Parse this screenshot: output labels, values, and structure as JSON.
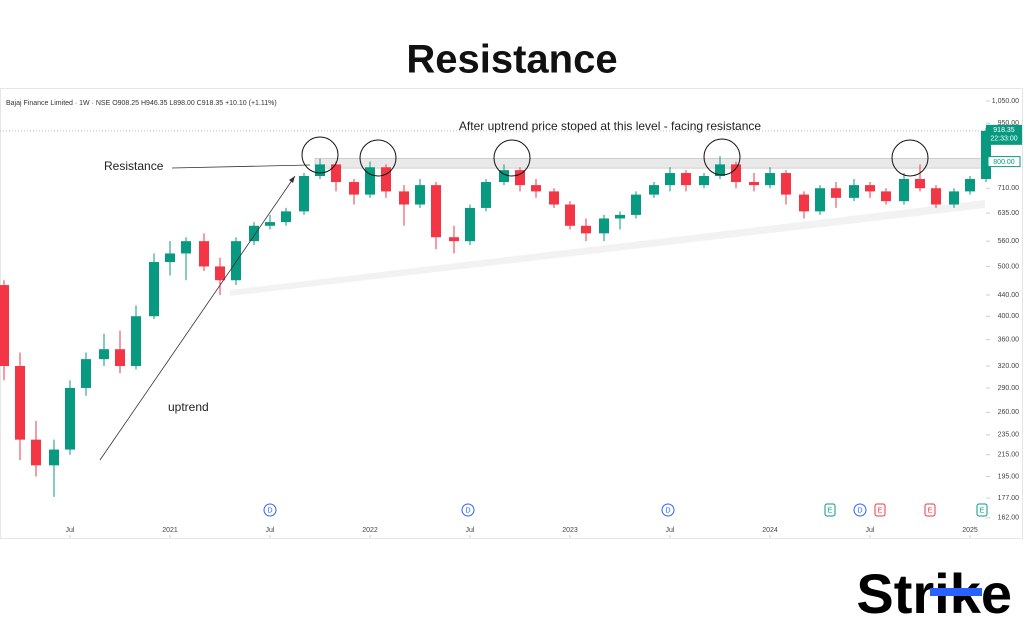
{
  "chart_data": {
    "type": "candlestick",
    "title": "Resistance",
    "header": "Bajaj Finance Limited · 1W · NSE  O908.25 H946.35 L898.00 C918.35 +10.10 (+1.11%)",
    "annotations": {
      "top": "After uptrend price stoped at this level - facing resistance",
      "resistance": "Resistance",
      "uptrend": "uptrend"
    },
    "logo": "Strike",
    "log_scale": true,
    "up_color": "#089981",
    "down_color": "#f23645",
    "resistance_zone": [
      777,
      812
    ],
    "price_tag": {
      "value": 918.35,
      "label": "918.35",
      "time": "22:33:00"
    },
    "level_tag": {
      "value": 800,
      "label": "800.00"
    },
    "xlim": [
      2020.15,
      2025.1
    ],
    "xticks": [
      {
        "value": 2020.5,
        "label": "Jul"
      },
      {
        "value": 2021,
        "label": "2021"
      },
      {
        "value": 2021.5,
        "label": "Jul"
      },
      {
        "value": 2022,
        "label": "2022"
      },
      {
        "value": 2022.5,
        "label": "Jul"
      },
      {
        "value": 2023,
        "label": "2023"
      },
      {
        "value": 2023.5,
        "label": "Jul"
      },
      {
        "value": 2024,
        "label": "2024"
      },
      {
        "value": 2024.5,
        "label": "Jul"
      },
      {
        "value": 2025,
        "label": "2025"
      }
    ],
    "ylim": [
      150,
      1093
    ],
    "yticks": [
      {
        "value": 162,
        "label": "162.00"
      },
      {
        "value": 177,
        "label": "177.00"
      },
      {
        "value": 195,
        "label": "195.00"
      },
      {
        "value": 215,
        "label": "215.00"
      },
      {
        "value": 235,
        "label": "235.00"
      },
      {
        "value": 260,
        "label": "260.00"
      },
      {
        "value": 290,
        "label": "290.00"
      },
      {
        "value": 320,
        "label": "320.00"
      },
      {
        "value": 360,
        "label": "360.00"
      },
      {
        "value": 400,
        "label": "400.00"
      },
      {
        "value": 440,
        "label": "440.00"
      },
      {
        "value": 500,
        "label": "500.00"
      },
      {
        "value": 560,
        "label": "560.00"
      },
      {
        "value": 635,
        "label": "635.00"
      },
      {
        "value": 710,
        "label": "710.00"
      },
      {
        "value": 950,
        "label": "950.00"
      },
      {
        "value": 1050,
        "label": "1,050.00"
      }
    ],
    "events": [
      {
        "x": 2021.5,
        "label": "D",
        "color": "#2962ff"
      },
      {
        "x": 2022.49,
        "label": "D",
        "color": "#2962ff"
      },
      {
        "x": 2023.49,
        "label": "D",
        "color": "#2962ff"
      },
      {
        "x": 2024.3,
        "label": "E",
        "color": "#089981"
      },
      {
        "x": 2024.45,
        "label": "D",
        "color": "#2962ff"
      },
      {
        "x": 2024.55,
        "label": "E",
        "color": "#f23645"
      },
      {
        "x": 2024.8,
        "label": "E",
        "color": "#f23645"
      },
      {
        "x": 2025.06,
        "label": "E",
        "color": "#089981"
      }
    ],
    "candles": [
      {
        "x": 2020.17,
        "open": 460,
        "high": 470,
        "low": 300,
        "close": 320
      },
      {
        "x": 2020.25,
        "open": 320,
        "high": 340,
        "low": 210,
        "close": 230
      },
      {
        "x": 2020.33,
        "open": 230,
        "high": 250,
        "low": 195,
        "close": 205
      },
      {
        "x": 2020.42,
        "open": 205,
        "high": 230,
        "low": 178,
        "close": 220
      },
      {
        "x": 2020.5,
        "open": 220,
        "high": 300,
        "low": 215,
        "close": 290
      },
      {
        "x": 2020.58,
        "open": 290,
        "high": 340,
        "low": 280,
        "close": 330
      },
      {
        "x": 2020.67,
        "open": 330,
        "high": 370,
        "low": 320,
        "close": 345
      },
      {
        "x": 2020.75,
        "open": 345,
        "high": 375,
        "low": 310,
        "close": 320
      },
      {
        "x": 2020.83,
        "open": 320,
        "high": 420,
        "low": 315,
        "close": 400
      },
      {
        "x": 2020.92,
        "open": 400,
        "high": 530,
        "low": 395,
        "close": 510
      },
      {
        "x": 2021,
        "open": 510,
        "high": 560,
        "low": 480,
        "close": 530
      },
      {
        "x": 2021.08,
        "open": 530,
        "high": 570,
        "low": 470,
        "close": 560
      },
      {
        "x": 2021.17,
        "open": 560,
        "high": 580,
        "low": 490,
        "close": 500
      },
      {
        "x": 2021.25,
        "open": 500,
        "high": 520,
        "low": 440,
        "close": 470
      },
      {
        "x": 2021.33,
        "open": 470,
        "high": 570,
        "low": 460,
        "close": 560
      },
      {
        "x": 2021.42,
        "open": 560,
        "high": 610,
        "low": 550,
        "close": 600
      },
      {
        "x": 2021.5,
        "open": 600,
        "high": 630,
        "low": 590,
        "close": 610
      },
      {
        "x": 2021.58,
        "open": 610,
        "high": 650,
        "low": 600,
        "close": 640
      },
      {
        "x": 2021.67,
        "open": 640,
        "high": 760,
        "low": 630,
        "close": 750
      },
      {
        "x": 2021.75,
        "open": 750,
        "high": 810,
        "low": 740,
        "close": 790
      },
      {
        "x": 2021.83,
        "open": 790,
        "high": 800,
        "low": 700,
        "close": 730
      },
      {
        "x": 2021.92,
        "open": 730,
        "high": 740,
        "low": 660,
        "close": 690
      },
      {
        "x": 2022,
        "open": 690,
        "high": 800,
        "low": 680,
        "close": 780
      },
      {
        "x": 2022.08,
        "open": 780,
        "high": 790,
        "low": 680,
        "close": 700
      },
      {
        "x": 2022.17,
        "open": 700,
        "high": 720,
        "low": 600,
        "close": 660
      },
      {
        "x": 2022.25,
        "open": 660,
        "high": 740,
        "low": 650,
        "close": 720
      },
      {
        "x": 2022.33,
        "open": 720,
        "high": 730,
        "low": 540,
        "close": 570
      },
      {
        "x": 2022.42,
        "open": 570,
        "high": 600,
        "low": 530,
        "close": 560
      },
      {
        "x": 2022.5,
        "open": 560,
        "high": 660,
        "low": 550,
        "close": 650
      },
      {
        "x": 2022.58,
        "open": 650,
        "high": 740,
        "low": 640,
        "close": 730
      },
      {
        "x": 2022.67,
        "open": 730,
        "high": 790,
        "low": 720,
        "close": 770
      },
      {
        "x": 2022.75,
        "open": 770,
        "high": 780,
        "low": 700,
        "close": 720
      },
      {
        "x": 2022.83,
        "open": 720,
        "high": 740,
        "low": 680,
        "close": 700
      },
      {
        "x": 2022.92,
        "open": 700,
        "high": 710,
        "low": 650,
        "close": 660
      },
      {
        "x": 2023,
        "open": 660,
        "high": 670,
        "low": 590,
        "close": 600
      },
      {
        "x": 2023.08,
        "open": 600,
        "high": 620,
        "low": 560,
        "close": 580
      },
      {
        "x": 2023.17,
        "open": 580,
        "high": 630,
        "low": 560,
        "close": 620
      },
      {
        "x": 2023.25,
        "open": 620,
        "high": 640,
        "low": 590,
        "close": 630
      },
      {
        "x": 2023.33,
        "open": 630,
        "high": 700,
        "low": 620,
        "close": 690
      },
      {
        "x": 2023.42,
        "open": 690,
        "high": 730,
        "low": 680,
        "close": 720
      },
      {
        "x": 2023.5,
        "open": 720,
        "high": 780,
        "low": 700,
        "close": 760
      },
      {
        "x": 2023.58,
        "open": 760,
        "high": 770,
        "low": 700,
        "close": 720
      },
      {
        "x": 2023.67,
        "open": 720,
        "high": 760,
        "low": 710,
        "close": 750
      },
      {
        "x": 2023.75,
        "open": 750,
        "high": 820,
        "low": 740,
        "close": 790
      },
      {
        "x": 2023.83,
        "open": 790,
        "high": 800,
        "low": 710,
        "close": 730
      },
      {
        "x": 2023.92,
        "open": 730,
        "high": 760,
        "low": 700,
        "close": 720
      },
      {
        "x": 2024,
        "open": 720,
        "high": 780,
        "low": 710,
        "close": 760
      },
      {
        "x": 2024.08,
        "open": 760,
        "high": 770,
        "low": 660,
        "close": 690
      },
      {
        "x": 2024.17,
        "open": 690,
        "high": 700,
        "low": 620,
        "close": 640
      },
      {
        "x": 2024.25,
        "open": 640,
        "high": 720,
        "low": 630,
        "close": 710
      },
      {
        "x": 2024.33,
        "open": 710,
        "high": 730,
        "low": 650,
        "close": 680
      },
      {
        "x": 2024.42,
        "open": 680,
        "high": 740,
        "low": 670,
        "close": 720
      },
      {
        "x": 2024.5,
        "open": 720,
        "high": 730,
        "low": 680,
        "close": 700
      },
      {
        "x": 2024.58,
        "open": 700,
        "high": 710,
        "low": 660,
        "close": 670
      },
      {
        "x": 2024.67,
        "open": 670,
        "high": 760,
        "low": 660,
        "close": 740
      },
      {
        "x": 2024.75,
        "open": 740,
        "high": 790,
        "low": 700,
        "close": 710
      },
      {
        "x": 2024.83,
        "open": 710,
        "high": 720,
        "low": 650,
        "close": 660
      },
      {
        "x": 2024.92,
        "open": 660,
        "high": 710,
        "low": 650,
        "close": 700
      },
      {
        "x": 2025,
        "open": 700,
        "high": 750,
        "low": 690,
        "close": 740
      },
      {
        "x": 2025.08,
        "open": 740,
        "high": 930,
        "low": 730,
        "close": 918.35
      }
    ]
  }
}
